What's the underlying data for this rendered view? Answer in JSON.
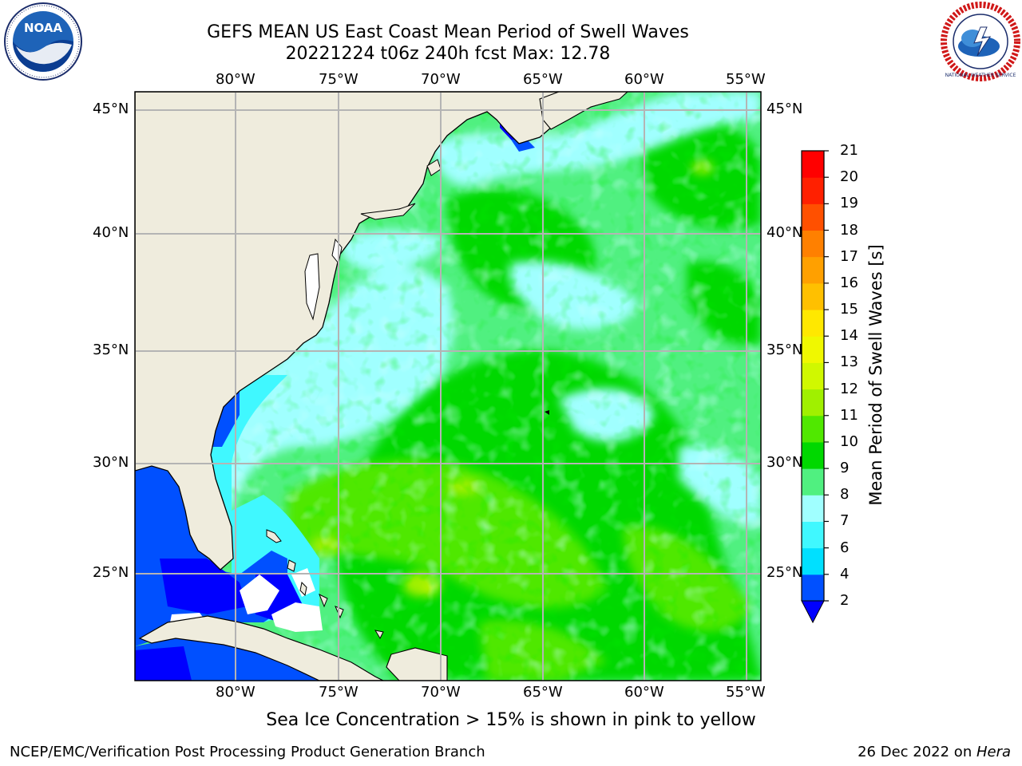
{
  "header": {
    "title_line1": "GEFS MEAN US East Coast Mean Period of Swell Waves",
    "title_line2": "20221224 t06z 240h fcst   Max: 12.78"
  },
  "logos": {
    "left": "NOAA",
    "right": "NATIONAL WEATHER SERVICE"
  },
  "map": {
    "projection": "plate-carree",
    "lon_range": [
      -85,
      -54.2
    ],
    "lat_range": [
      20.6,
      45.9
    ],
    "gridlines": true,
    "lon_ticks": [
      "80°W",
      "75°W",
      "70°W",
      "65°W",
      "60°W",
      "55°W"
    ],
    "lat_ticks": [
      "45°N",
      "40°N",
      "35°N",
      "30°N",
      "25°N"
    ],
    "land_color": "#efecdd",
    "max_value": 12.78
  },
  "colorbar": {
    "label": "Mean Period of Swell Waves [s]",
    "ticks": [
      "2",
      "4",
      "6",
      "7",
      "8",
      "9",
      "10",
      "11",
      "12",
      "13",
      "14",
      "15",
      "16",
      "17",
      "18",
      "19",
      "20",
      "21"
    ],
    "colors": [
      "#0050ff",
      "#00e0ff",
      "#40f8ff",
      "#a0ffff",
      "#50f080",
      "#00d800",
      "#50e800",
      "#a0f000",
      "#d0f800",
      "#f0f800",
      "#ffe800",
      "#ffc000",
      "#ffa000",
      "#ff8000",
      "#ff5000",
      "#ff2000",
      "#ff0000"
    ],
    "under_color": "#0000ff"
  },
  "note": "Sea Ice Concentration > 15% is shown in pink to yellow",
  "footer": {
    "left": "NCEP/EMC/Verification Post Processing Product Generation Branch",
    "right_date": "26 Dec 2022 on ",
    "right_machine": "Hera"
  }
}
